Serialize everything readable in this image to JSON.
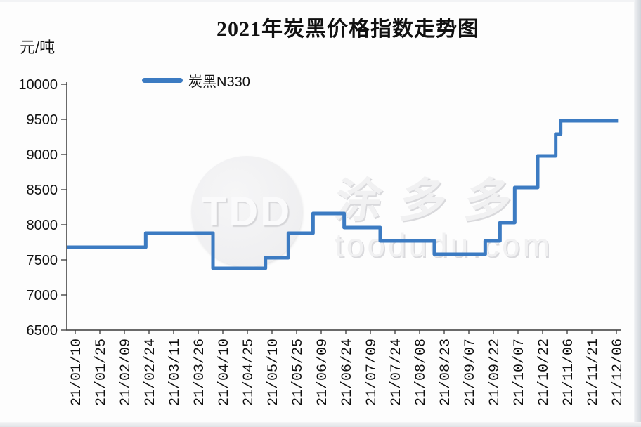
{
  "title": "2021年炭黑价格指数走势图",
  "y_unit_label": "元/吨",
  "legend": {
    "label": "炭黑N330",
    "color": "#3c7bc2"
  },
  "watermark": {
    "logo_text": "TDD",
    "cn_text": "涂多多",
    "site_text": "toodudu.com"
  },
  "chart_data": {
    "type": "line",
    "style": "step-after",
    "title": "2021年炭黑价格指数走势图",
    "series_name": "炭黑N330",
    "ylabel": "元/吨",
    "ylim": [
      6500,
      10000
    ],
    "y_tick_step": 500,
    "y_ticks": [
      6500,
      7000,
      7500,
      8000,
      8500,
      9000,
      9500,
      10000
    ],
    "x_tick_labels": [
      "21/01/10",
      "21/01/25",
      "21/02/09",
      "21/02/24",
      "21/03/11",
      "21/03/26",
      "21/04/10",
      "21/04/25",
      "21/05/10",
      "21/05/25",
      "21/06/09",
      "21/06/24",
      "21/07/09",
      "21/07/24",
      "21/08/08",
      "21/08/23",
      "21/09/07",
      "21/09/22",
      "21/10/07",
      "21/10/22",
      "21/11/06",
      "21/11/21",
      "21/12/06"
    ],
    "x_tick_interval_days": 15,
    "grid": false,
    "legend_position": "top-left",
    "line_color": "#3c7bc2",
    "steps_note": "t_days counted from first tick 21/01/10; each pair is [t_days_when_level_starts, price]; level holds until next breakpoint",
    "steps": [
      [
        -5,
        7680
      ],
      [
        43,
        7880
      ],
      [
        84,
        7380
      ],
      [
        116,
        7530
      ],
      [
        130,
        7880
      ],
      [
        145,
        8160
      ],
      [
        164,
        7960
      ],
      [
        186,
        7770
      ],
      [
        219,
        7580
      ],
      [
        250,
        7770
      ],
      [
        259,
        8030
      ],
      [
        268,
        8530
      ],
      [
        282,
        8980
      ],
      [
        293,
        9290
      ],
      [
        296,
        9480
      ]
    ],
    "t_end_days": 331
  }
}
